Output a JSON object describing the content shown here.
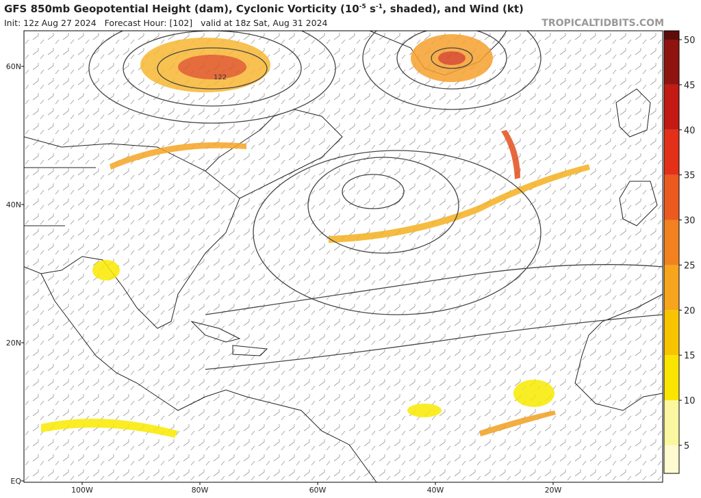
{
  "header": {
    "title_parts": [
      "GFS 850mb Geopotential Height (dam), Cyclonic Vorticity (10",
      "-5",
      " s",
      "-1",
      ", shaded), and Wind (kt)"
    ],
    "subtitle": "Init: 12z Aug 27 2024   Forecast Hour: [102]   valid at 18z Sat, Aug 31 2024",
    "watermark": "TROPICALTIDBITS.COM"
  },
  "map": {
    "lat_labels": [
      "60N",
      "40N",
      "20N",
      "EQ"
    ],
    "lon_labels": [
      "100W",
      "80W",
      "60W",
      "40W",
      "20W"
    ],
    "contour_label": "122"
  },
  "colorbar": {
    "ticks": [
      5,
      10,
      15,
      20,
      25,
      30,
      35,
      40,
      45,
      50
    ]
  }
}
